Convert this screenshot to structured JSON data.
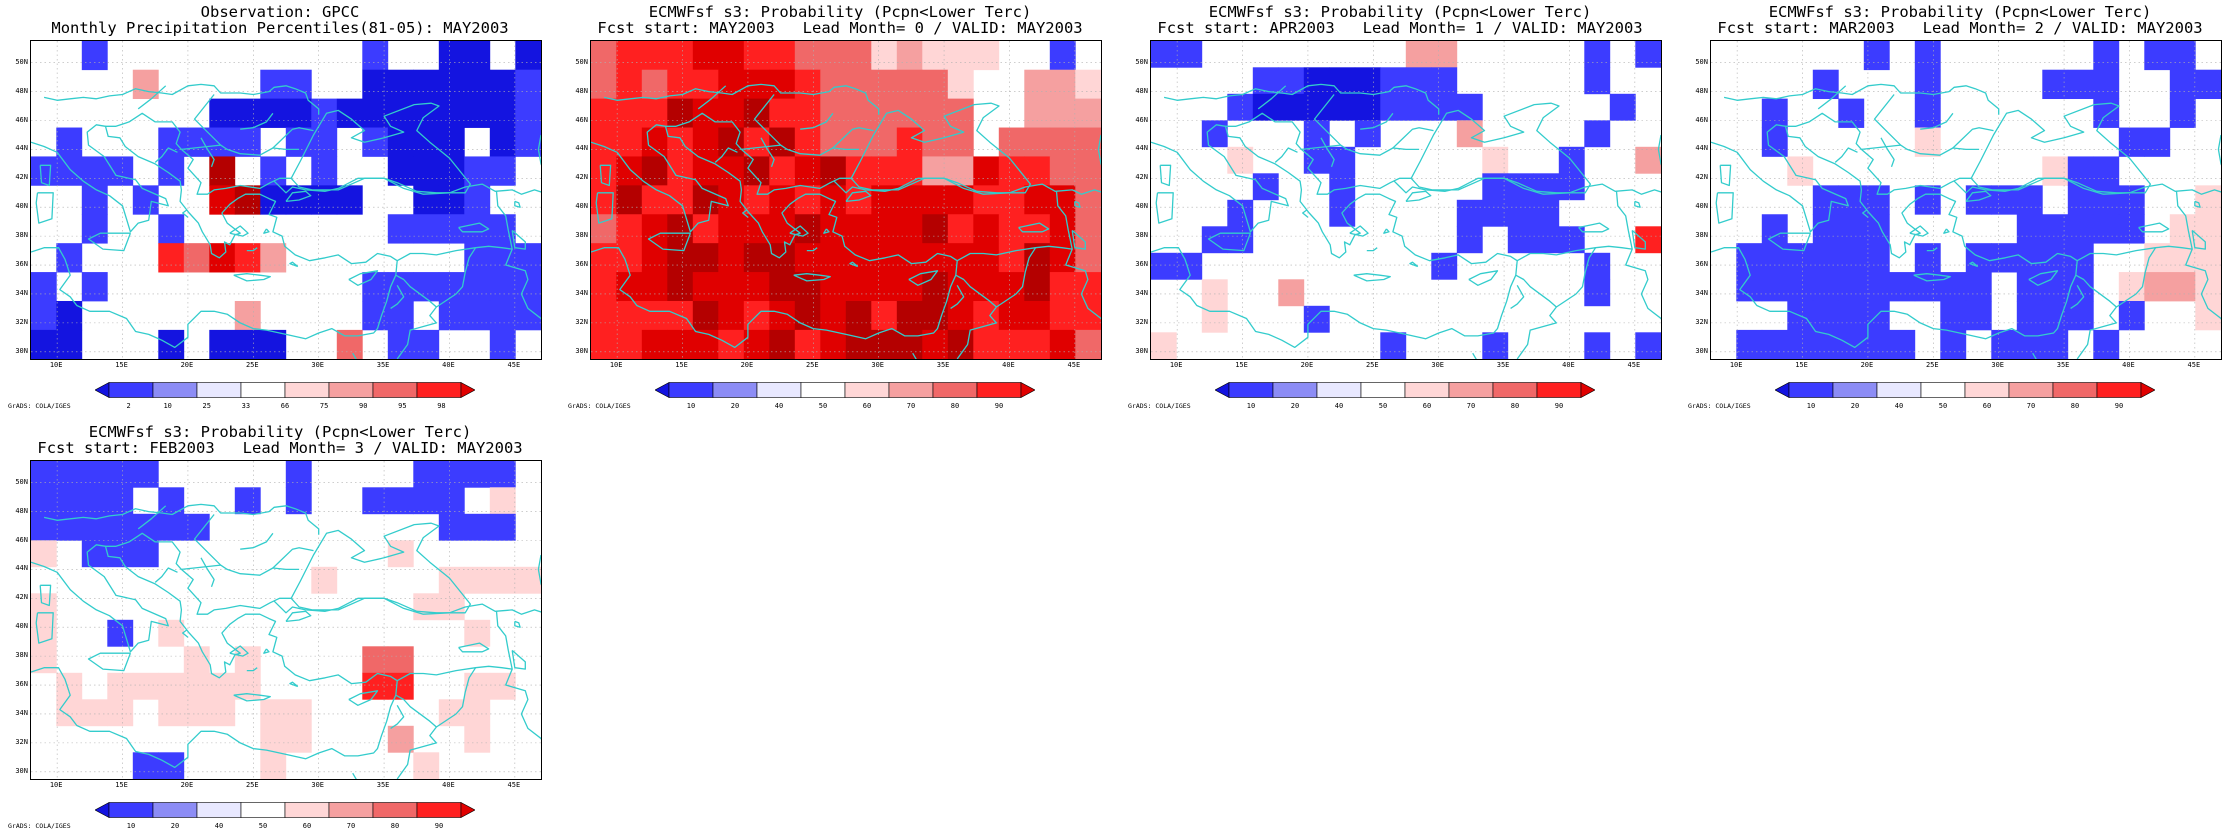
{
  "lat_labels": [
    "50N",
    "48N",
    "46N",
    "44N",
    "42N",
    "40N",
    "38N",
    "36N",
    "34N",
    "32N",
    "30N"
  ],
  "lon_labels": [
    "10E",
    "15E",
    "20E",
    "25E",
    "30E",
    "35E",
    "40E",
    "45E"
  ],
  "credit": "GrADS: COLA/IGES",
  "colors": {
    "coast": "#33cccc",
    "grid": "#b0b0b0",
    "scale": [
      "#1414e0",
      "#3c3cff",
      "#8c8cf5",
      "#e8e8ff",
      "#ffffff",
      "#ffd6d6",
      "#f5a0a0",
      "#f06868",
      "#ff2020",
      "#e00000",
      "#b40000",
      "#8c0000"
    ]
  },
  "panels": [
    {
      "title1": "Observation: GPCC",
      "title2": "Monthly Precipitation Percentiles(81-05): MAY2003",
      "scale_labels": [
        "2",
        "10",
        "25",
        "33",
        "66",
        "75",
        "90",
        "95",
        "98"
      ],
      "grid_rows": [
        "..1..........1..00.0",
        "....7....11..0000001",
        ".......0000100000001",
        ".1...1111.11.1000.01",
        "1111.1.B.1.1..00011.",
        "..1.1..AB0000..001..",
        "..1..1........11111.",
        ".1...98A97.......111",
        "1.1..........1111111",
        "10......7....11.1111",
        "00...0.000..8.11..1."
      ]
    },
    {
      "title1": "ECMWFsf s3: Probability (Pcpn<Lower Terc)",
      "title2": "Fcst start: MAY2003   Lead Month= 0 / VALID: MAY2003",
      "scale_labels": [
        "10",
        "20",
        "40",
        "50",
        "60",
        "70",
        "80",
        "90"
      ],
      "grid_rows": [
        "8999AA9988867666..1.",
        "89899AAA9888886..776",
        "999BAAB99888888..777",
        "99A9AB9B9888988.8888",
        "9AB9AAB9AB99977A9988",
        "9B99BA9A9A9AAAA99AA8",
        "89AB9AAABAAAAB9A99A8",
        "99ABBABBAAAAAAAA9BA8",
        "9AABAAABBAAAABAAAB99",
        "9999BA9ABAB9BBA9AA99",
        "99AAA9AB9ABBBAB999A8"
      ]
    },
    {
      "title1": "ECMWFsf s3: Probability (Pcpn<Lower Terc)",
      "title2": "Fcst start: APR2003   Lead Month= 1 / VALID: MAY2003",
      "scale_labels": [
        "10",
        "20",
        "40",
        "50",
        "60",
        "70",
        "80",
        "90"
      ],
      "grid_rows": [
        "11........77.....1.1",
        "....11000111.....1..",
        "...1000001111.....1.",
        "..1...1.1...7....1..",
        "...6..11.....6..1..7",
        "....1..1.....1111...",
        "...1...1....1111....",
        "..11........1.111..9",
        "11.........1.....1..",
        "..6..7...........1..",
        "..6...1.............",
        "6........1...1...1.1"
      ]
    },
    {
      "title1": "ECMWFsf s3: Probability (Pcpn<Lower Terc)",
      "title2": "Fcst start: MAR2003   Lead Month= 2 / VALID: MAY2003",
      "scale_labels": [
        "10",
        "20",
        "40",
        "50",
        "60",
        "70",
        "80",
        "90"
      ],
      "grid_rows": [
        "......1.1......1.11.",
        "....1...1....111..11",
        "..1..1..1......1..1.",
        "..1.....6.......11..",
        "...6.........611....",
        "....111.1.111.111..6",
        "..1.111.....11111.66",
        ".111111.1.11111..666",
        ".1111111111.111.6776",
        "...1111..11.111.1..6",
        ".1111111.1.111.1...."
      ]
    },
    {
      "title1": "ECMWFsf s3: Probability (Pcpn<Lower Terc)",
      "title2": "Fcst start: FEB2003   Lead Month= 3 / VALID: MAY2003",
      "scale_labels": [
        "10",
        "20",
        "40",
        "50",
        "60",
        "70",
        "80",
        "90"
      ],
      "grid_rows": [
        "11111.....1....1111.",
        "1111.1..1.1..1111.6",
        "1111111.........111.",
        "6.111.........6.....",
        "...........6....6666",
        "6..............66...",
        "6..1.6...........6..",
        "6.....6.6....88.....",
        ".6.666666....99..66.",
        ".666.666.66.....66..",
        ".........66...7..6..",
        "....11...6.....6...."
      ]
    }
  ]
}
